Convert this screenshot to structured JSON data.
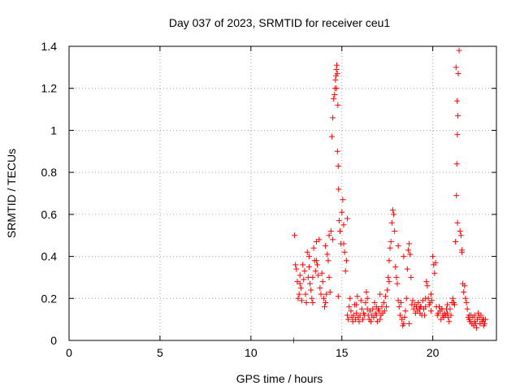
{
  "chart_data": {
    "type": "scatter",
    "title": "Day 037 of 2023, SRMTID for receiver ceu1",
    "xlabel": "GPS time / hours",
    "ylabel": "SRMTID / TECUs",
    "xlim": [
      0,
      23.5
    ],
    "ylim": [
      0,
      1.4
    ],
    "xticks": [
      0,
      5,
      10,
      15,
      20
    ],
    "yticks": [
      0,
      0.2,
      0.4,
      0.6,
      0.8,
      1,
      1.2,
      1.4
    ],
    "xtick_labels": [
      "0",
      "5",
      "10",
      "15",
      "20"
    ],
    "ytick_labels": [
      "0",
      "0.2",
      "0.4",
      "0.6",
      "0.8",
      "1",
      "1.2",
      "1.4"
    ],
    "grid": true,
    "marker": "+",
    "color": "#ff0000",
    "series": [
      {
        "name": "ceu1",
        "x": [
          12.4,
          12.45,
          12.5,
          12.55,
          12.6,
          12.65,
          12.7,
          12.75,
          12.8,
          12.85,
          12.9,
          12.95,
          13.0,
          13.05,
          13.1,
          13.15,
          13.2,
          13.25,
          13.3,
          13.35,
          13.4,
          13.45,
          13.5,
          13.55,
          13.6,
          13.65,
          13.7,
          13.75,
          13.8,
          13.85,
          13.9,
          13.95,
          14.0,
          14.05,
          14.1,
          14.15,
          14.2,
          14.25,
          14.3,
          14.35,
          14.4,
          14.45,
          14.5,
          14.55,
          14.6,
          14.62,
          14.65,
          14.68,
          14.7,
          14.72,
          14.75,
          14.78,
          14.8,
          14.85,
          14.9,
          14.95,
          15.0,
          15.05,
          15.1,
          15.15,
          15.2,
          15.25,
          15.3,
          15.35,
          15.4,
          15.45,
          15.5,
          15.55,
          15.6,
          15.65,
          15.7,
          15.75,
          15.8,
          15.85,
          15.9,
          15.95,
          16.0,
          16.05,
          16.1,
          16.15,
          16.2,
          16.25,
          16.3,
          16.35,
          16.4,
          16.45,
          16.5,
          16.55,
          16.6,
          16.65,
          16.7,
          16.75,
          16.8,
          16.85,
          16.9,
          16.95,
          17.0,
          17.05,
          17.1,
          17.15,
          17.2,
          17.25,
          17.3,
          17.35,
          17.4,
          17.45,
          17.5,
          17.55,
          17.6,
          17.65,
          17.7,
          17.75,
          17.8,
          17.85,
          17.9,
          17.95,
          18.0,
          18.05,
          18.1,
          18.15,
          18.2,
          18.25,
          18.3,
          18.35,
          18.4,
          18.45,
          18.5,
          18.55,
          18.6,
          18.65,
          18.7,
          18.75,
          18.8,
          18.85,
          18.9,
          18.95,
          19.0,
          19.05,
          19.1,
          19.15,
          19.2,
          19.25,
          19.3,
          19.35,
          19.4,
          19.45,
          19.5,
          19.55,
          19.6,
          19.65,
          19.7,
          19.75,
          19.8,
          19.85,
          19.9,
          19.95,
          20.0,
          20.05,
          20.1,
          20.15,
          20.2,
          20.25,
          20.3,
          20.35,
          20.4,
          20.45,
          20.5,
          20.55,
          20.6,
          20.65,
          20.7,
          20.75,
          20.8,
          20.85,
          20.9,
          20.95,
          21.0,
          21.05,
          21.1,
          21.15,
          21.2,
          21.25,
          21.3,
          21.32,
          21.35,
          21.38,
          21.4,
          21.45,
          21.5,
          21.55,
          21.6,
          21.65,
          21.7,
          21.75,
          21.8,
          21.85,
          21.9,
          21.95,
          22.0,
          22.05,
          22.1,
          22.15,
          22.2,
          22.25,
          22.3,
          22.35,
          22.4,
          22.45,
          22.5,
          22.55,
          22.6,
          22.65,
          22.7,
          22.75,
          22.8,
          22.85,
          22.9,
          12.35,
          12.7,
          13.2,
          13.6,
          14.1,
          14.5,
          14.8,
          15.3,
          15.8,
          16.4,
          17.1,
          17.6,
          18.1,
          18.7,
          19.3,
          19.9,
          20.5,
          21.6,
          22.3,
          22.8,
          13.4,
          14.3,
          15.1,
          16.9,
          18.4,
          19.6,
          20.8,
          22.0,
          14.7,
          14.76,
          14.82,
          21.28,
          21.34,
          21.36
        ],
        "y": [
          0.5,
          0.36,
          0.34,
          0.28,
          0.2,
          0.22,
          0.31,
          0.25,
          0.19,
          0.36,
          0.29,
          0.33,
          0.22,
          0.18,
          0.42,
          0.3,
          0.4,
          0.27,
          0.24,
          0.2,
          0.18,
          0.44,
          0.38,
          0.33,
          0.47,
          0.36,
          0.31,
          0.48,
          0.25,
          0.22,
          0.32,
          0.28,
          0.2,
          0.16,
          0.18,
          0.22,
          0.41,
          0.38,
          0.3,
          0.23,
          0.52,
          0.97,
          1.06,
          1.15,
          1.17,
          1.2,
          1.24,
          1.26,
          1.29,
          1.31,
          1.27,
          1.12,
          0.83,
          0.57,
          0.52,
          0.46,
          0.61,
          0.67,
          0.55,
          0.42,
          0.33,
          0.38,
          0.12,
          0.1,
          0.16,
          0.2,
          0.14,
          0.11,
          0.09,
          0.12,
          0.17,
          0.1,
          0.13,
          0.21,
          0.11,
          0.09,
          0.12,
          0.19,
          0.15,
          0.1,
          0.13,
          0.12,
          0.18,
          0.23,
          0.15,
          0.12,
          0.1,
          0.14,
          0.09,
          0.12,
          0.15,
          0.11,
          0.18,
          0.13,
          0.12,
          0.09,
          0.15,
          0.14,
          0.1,
          0.12,
          0.16,
          0.13,
          0.18,
          0.14,
          0.21,
          0.16,
          0.24,
          0.3,
          0.38,
          0.44,
          0.47,
          0.56,
          0.62,
          0.6,
          0.52,
          0.35,
          0.3,
          0.27,
          0.19,
          0.16,
          0.12,
          0.18,
          0.1,
          0.07,
          0.08,
          0.11,
          0.14,
          0.2,
          0.34,
          0.43,
          0.46,
          0.41,
          0.3,
          0.17,
          0.19,
          0.15,
          0.17,
          0.13,
          0.16,
          0.14,
          0.18,
          0.15,
          0.13,
          0.16,
          0.12,
          0.19,
          0.15,
          0.12,
          0.2,
          0.28,
          0.26,
          0.2,
          0.17,
          0.18,
          0.22,
          0.19,
          0.4,
          0.36,
          0.32,
          0.37,
          0.16,
          0.12,
          0.13,
          0.16,
          0.14,
          0.1,
          0.15,
          0.12,
          0.11,
          0.13,
          0.12,
          0.15,
          0.17,
          0.11,
          0.09,
          0.15,
          0.12,
          0.18,
          0.2,
          0.18,
          0.17,
          0.47,
          0.69,
          0.84,
          0.98,
          1.07,
          1.27,
          1.38,
          0.52,
          0.5,
          0.43,
          0.27,
          0.23,
          0.26,
          0.2,
          0.18,
          0.15,
          0.11,
          0.1,
          0.09,
          0.12,
          0.08,
          0.11,
          0.07,
          0.09,
          0.08,
          0.06,
          0.1,
          0.13,
          0.11,
          0.08,
          0.12,
          0.09,
          0.1,
          0.07,
          0.08,
          0.1,
          0.0,
          0.27,
          0.35,
          0.38,
          0.45,
          0.48,
          0.21,
          0.58,
          0.17,
          0.2,
          0.22,
          0.28,
          0.45,
          0.08,
          0.16,
          0.14,
          0.15,
          0.42,
          0.12,
          0.1,
          0.3,
          0.5,
          0.46,
          0.16,
          0.4,
          0.16,
          0.13,
          0.12,
          1.2,
          0.9,
          0.72,
          1.3,
          1.14,
          0.56
        ]
      }
    ]
  }
}
